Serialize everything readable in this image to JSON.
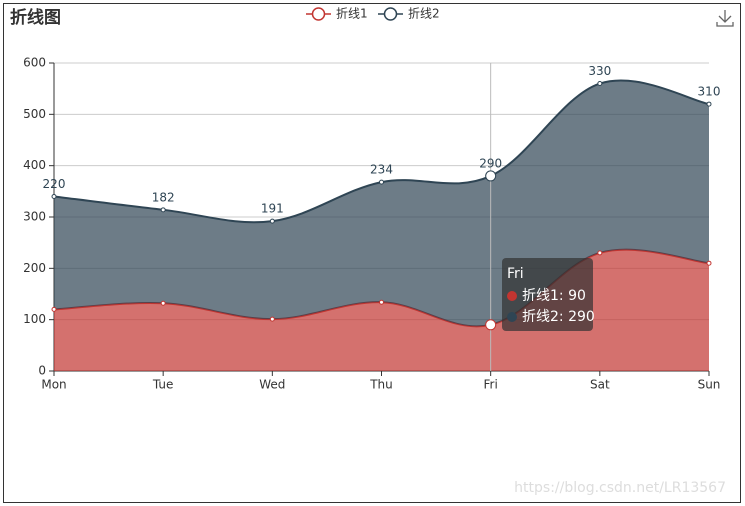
{
  "chart_data": {
    "type": "stacked-area",
    "title": "折线图",
    "categories": [
      "Mon",
      "Tue",
      "Wed",
      "Thu",
      "Fri",
      "Sat",
      "Sun"
    ],
    "series": [
      {
        "name": "折线1",
        "color": "#c23531",
        "values": [
          120,
          132,
          101,
          134,
          90,
          230,
          210
        ]
      },
      {
        "name": "折线2",
        "color": "#2f4554",
        "values": [
          220,
          182,
          191,
          234,
          290,
          330,
          310
        ]
      }
    ],
    "ylim": [
      0,
      600
    ],
    "yticks": [
      0,
      100,
      200,
      300,
      400,
      500,
      600
    ],
    "grid": true,
    "legend": "top",
    "tooltip": {
      "title": "Fri",
      "items": [
        "折线1: 90",
        "折线2: 290"
      ]
    },
    "watermark": "https://blog.csdn.net/LR13567"
  }
}
